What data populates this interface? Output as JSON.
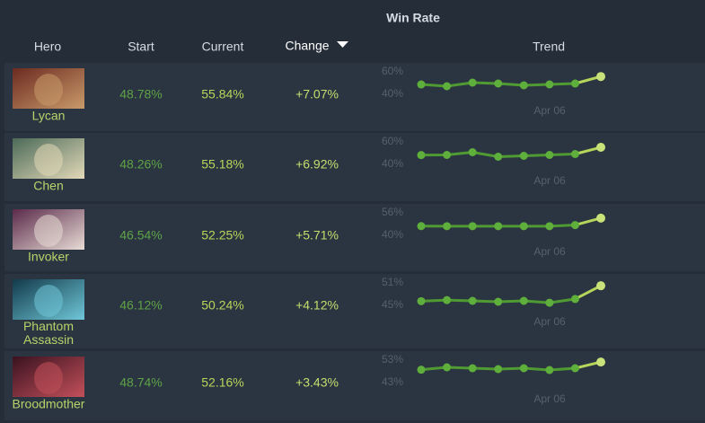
{
  "header": {
    "group_title": "Win Rate",
    "columns": [
      "Hero",
      "Start",
      "Current",
      "Change",
      "Trend"
    ]
  },
  "rows": [
    {
      "hero": "Lycan",
      "start": "48.78%",
      "current": "55.84%",
      "change": "+7.07%",
      "trend": {
        "yticks": [
          {
            "value": 60,
            "label": "60%"
          },
          {
            "value": 40,
            "label": "40%"
          }
        ],
        "x_label": "Apr 06",
        "values": [
          48.78,
          47.2,
          50.4,
          49.6,
          48,
          48.8,
          49.6,
          55.84
        ]
      }
    },
    {
      "hero": "Chen",
      "start": "48.26%",
      "current": "55.18%",
      "change": "+6.92%",
      "trend": {
        "yticks": [
          {
            "value": 60,
            "label": "60%"
          },
          {
            "value": 40,
            "label": "40%"
          }
        ],
        "x_label": "Apr 06",
        "values": [
          48.26,
          48.4,
          50.8,
          46.8,
          47.6,
          48.4,
          49.2,
          55.18
        ]
      }
    },
    {
      "hero": "Invoker",
      "start": "46.54%",
      "current": "52.25%",
      "change": "+5.71%",
      "trend": {
        "yticks": [
          {
            "value": 56,
            "label": "56%"
          },
          {
            "value": 40,
            "label": "40%"
          }
        ],
        "x_label": "Apr 06",
        "values": [
          46.54,
          46.5,
          46.5,
          46.5,
          46.5,
          46.5,
          47.3,
          52.25
        ]
      }
    },
    {
      "hero": "Phantom Assassin",
      "start": "46.12%",
      "current": "50.24%",
      "change": "+4.12%",
      "trend": {
        "yticks": [
          {
            "value": 51,
            "label": "51%"
          },
          {
            "value": 45,
            "label": "45%"
          }
        ],
        "x_label": "Apr 06",
        "values": [
          46.12,
          46.4,
          46.2,
          45.96,
          46.2,
          45.7,
          46.7,
          50.24
        ]
      }
    },
    {
      "hero": "Broodmother",
      "start": "48.74%",
      "current": "52.16%",
      "change": "+3.43%",
      "trend": {
        "yticks": [
          {
            "value": 53,
            "label": "53%"
          },
          {
            "value": 43,
            "label": "43%"
          }
        ],
        "x_label": "Apr 06",
        "values": [
          48.74,
          49.8,
          49.4,
          49,
          49.4,
          48.6,
          49.4,
          52.16
        ]
      }
    }
  ]
}
